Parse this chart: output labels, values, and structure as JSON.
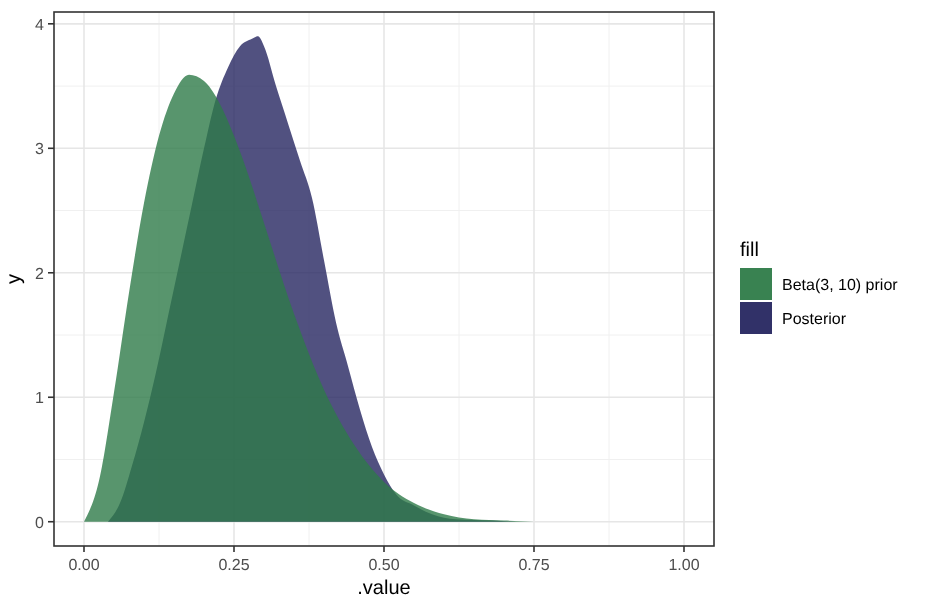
{
  "chart_data": {
    "type": "area",
    "xlabel": ".value",
    "ylabel": "y",
    "legend_title": "fill",
    "legend": "right",
    "grid": true,
    "xlim": [
      -0.05,
      1.05
    ],
    "ylim": [
      -0.195,
      4.095
    ],
    "xticks": [
      {
        "value": 0,
        "label": "0.00"
      },
      {
        "value": 0.25,
        "label": "0.25"
      },
      {
        "value": 0.5,
        "label": "0.50"
      },
      {
        "value": 0.75,
        "label": "0.75"
      },
      {
        "value": 1,
        "label": "1.00"
      }
    ],
    "yticks": [
      0,
      1,
      2,
      3,
      4
    ],
    "series": [
      {
        "name": "Posterior",
        "color": "#262660",
        "x": [
          0.04,
          0.06,
          0.08,
          0.1,
          0.12,
          0.14,
          0.16,
          0.18,
          0.2,
          0.22,
          0.24,
          0.26,
          0.28,
          0.29,
          0.3,
          0.32,
          0.34,
          0.36,
          0.38,
          0.4,
          0.42,
          0.44,
          0.46,
          0.48,
          0.5,
          0.52,
          0.55,
          0.58,
          0.62,
          0.68,
          0.72
        ],
        "values": [
          0,
          0.15,
          0.45,
          0.8,
          1.2,
          1.65,
          2.1,
          2.55,
          3.0,
          3.4,
          3.65,
          3.82,
          3.88,
          3.9,
          3.82,
          3.5,
          3.2,
          2.9,
          2.6,
          2.1,
          1.6,
          1.25,
          0.9,
          0.6,
          0.38,
          0.22,
          0.13,
          0.06,
          0.02,
          0.01,
          0
        ]
      },
      {
        "name": "Beta(3, 10) prior",
        "color": "#2e7b48",
        "x": [
          0,
          0.025,
          0.05,
          0.075,
          0.1,
          0.125,
          0.15,
          0.175,
          0.2,
          0.225,
          0.25,
          0.275,
          0.3,
          0.35,
          0.4,
          0.45,
          0.5,
          0.55,
          0.6,
          0.65,
          0.7,
          0.75
        ],
        "values": [
          0,
          0.33,
          1.04,
          1.84,
          2.56,
          3.1,
          3.44,
          3.59,
          3.54,
          3.37,
          3.1,
          2.77,
          2.4,
          1.67,
          1.06,
          0.62,
          0.32,
          0.15,
          0.06,
          0.02,
          0.01,
          0
        ]
      }
    ]
  }
}
